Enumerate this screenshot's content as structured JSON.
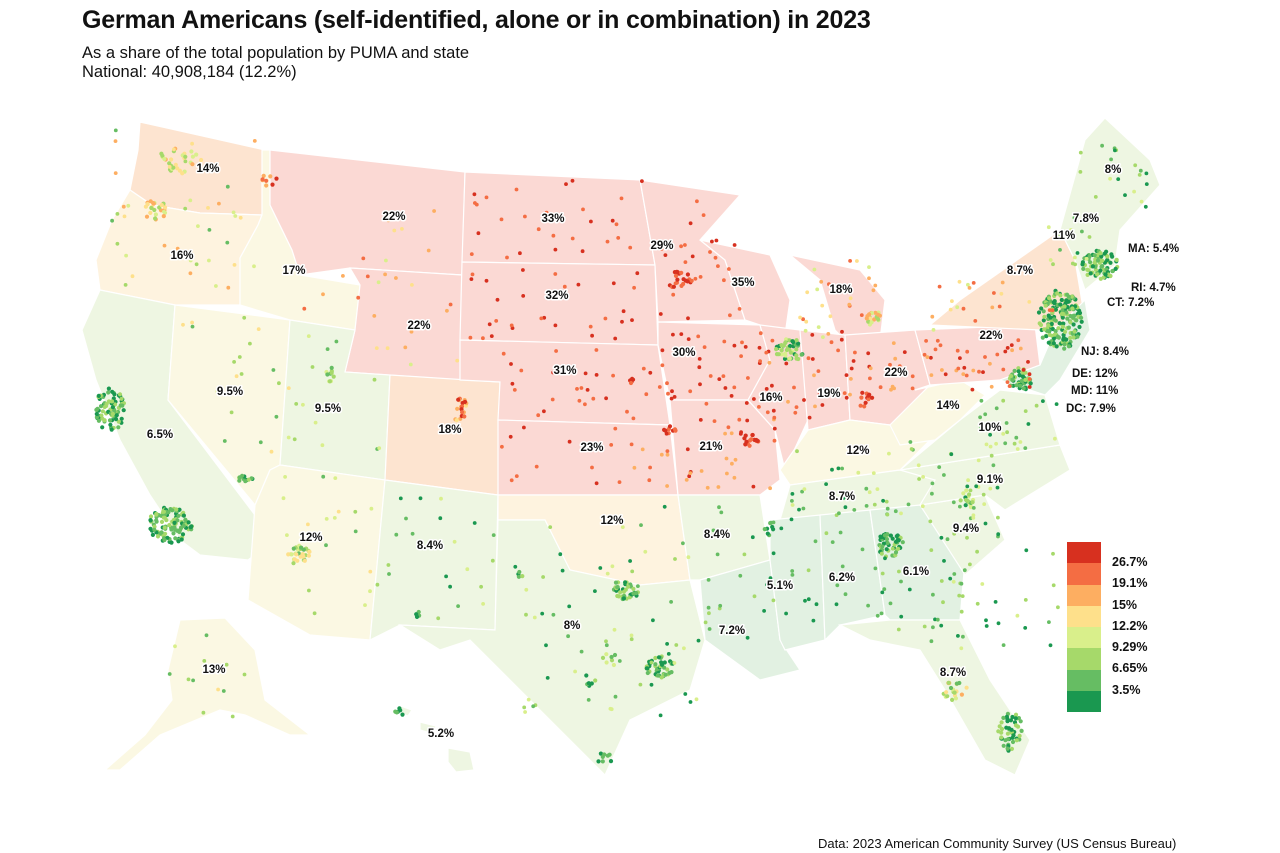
{
  "title": "German Americans (self-identified, alone or in combination) in 2023",
  "subtitle_line1": "As a share of the total population by PUMA and state",
  "subtitle_line2": "National: 40,908,184 (12.2%)",
  "source": "Data: 2023 American Community Survey (US Census Bureau)",
  "legend": {
    "bins": [
      {
        "label": "26.7%",
        "color": "#d7301f"
      },
      {
        "label": "19.1%",
        "color": "#f46d43"
      },
      {
        "label": "15%",
        "color": "#fdae61"
      },
      {
        "label": "12.2%",
        "color": "#fee08b"
      },
      {
        "label": "9.29%",
        "color": "#d9ef8b"
      },
      {
        "label": "6.65%",
        "color": "#a6d96a"
      },
      {
        "label": "3.5%",
        "color": "#66bd63"
      }
    ],
    "last_color": "#1a9850"
  },
  "state_labels": [
    {
      "id": "wa",
      "text": "14%"
    },
    {
      "id": "or",
      "text": "16%"
    },
    {
      "id": "id",
      "text": "17%"
    },
    {
      "id": "mt",
      "text": "22%"
    },
    {
      "id": "wy",
      "text": "22%"
    },
    {
      "id": "nv",
      "text": "9.5%"
    },
    {
      "id": "ut",
      "text": "9.5%"
    },
    {
      "id": "ca",
      "text": "6.5%"
    },
    {
      "id": "co",
      "text": "18%"
    },
    {
      "id": "az",
      "text": "12%"
    },
    {
      "id": "nm",
      "text": "8.4%"
    },
    {
      "id": "nd",
      "text": "33%"
    },
    {
      "id": "sd",
      "text": "32%"
    },
    {
      "id": "ne",
      "text": "31%"
    },
    {
      "id": "ks",
      "text": "23%"
    },
    {
      "id": "ok",
      "text": "12%"
    },
    {
      "id": "tx",
      "text": "8%"
    },
    {
      "id": "mn",
      "text": "29%"
    },
    {
      "id": "ia",
      "text": "30%"
    },
    {
      "id": "wi",
      "text": "35%"
    },
    {
      "id": "mo",
      "text": "21%"
    },
    {
      "id": "ar",
      "text": "8.4%"
    },
    {
      "id": "la",
      "text": "7.2%"
    },
    {
      "id": "il",
      "text": "16%"
    },
    {
      "id": "in",
      "text": "19%"
    },
    {
      "id": "mi",
      "text": "18%"
    },
    {
      "id": "oh",
      "text": "22%"
    },
    {
      "id": "ky",
      "text": "12%"
    },
    {
      "id": "tn",
      "text": "8.7%"
    },
    {
      "id": "ms",
      "text": "5.1%"
    },
    {
      "id": "al",
      "text": "6.2%"
    },
    {
      "id": "ga",
      "text": "6.1%"
    },
    {
      "id": "fl",
      "text": "8.7%"
    },
    {
      "id": "sc",
      "text": "9.4%"
    },
    {
      "id": "nc",
      "text": "9.1%"
    },
    {
      "id": "va",
      "text": "10%"
    },
    {
      "id": "wv",
      "text": "14%"
    },
    {
      "id": "pa",
      "text": "22%"
    },
    {
      "id": "ny",
      "text": "8.7%"
    },
    {
      "id": "vt",
      "text": "11%"
    },
    {
      "id": "nh",
      "text": "7.8%"
    },
    {
      "id": "me",
      "text": "8%"
    },
    {
      "id": "ak",
      "text": "13%"
    },
    {
      "id": "hi",
      "text": "5.2%"
    }
  ],
  "callouts": [
    {
      "id": "ma",
      "text": "MA: 5.4%"
    },
    {
      "id": "ri",
      "text": "RI: 4.7%"
    },
    {
      "id": "ct",
      "text": "CT: 7.2%"
    },
    {
      "id": "nj",
      "text": "NJ: 8.4%"
    },
    {
      "id": "de",
      "text": "DE: 12%"
    },
    {
      "id": "md",
      "text": "MD: 11%"
    },
    {
      "id": "dc",
      "text": "DC: 7.9%"
    }
  ],
  "colors": {
    "bg_high": "#fbd9d4",
    "bg_midhigh": "#fde4d0",
    "bg_mid": "#fef3df",
    "bg_midlow": "#fbf8e3",
    "bg_low": "#eef6e2",
    "bg_verylow": "#e2f1e2",
    "border": "#ffffff"
  }
}
